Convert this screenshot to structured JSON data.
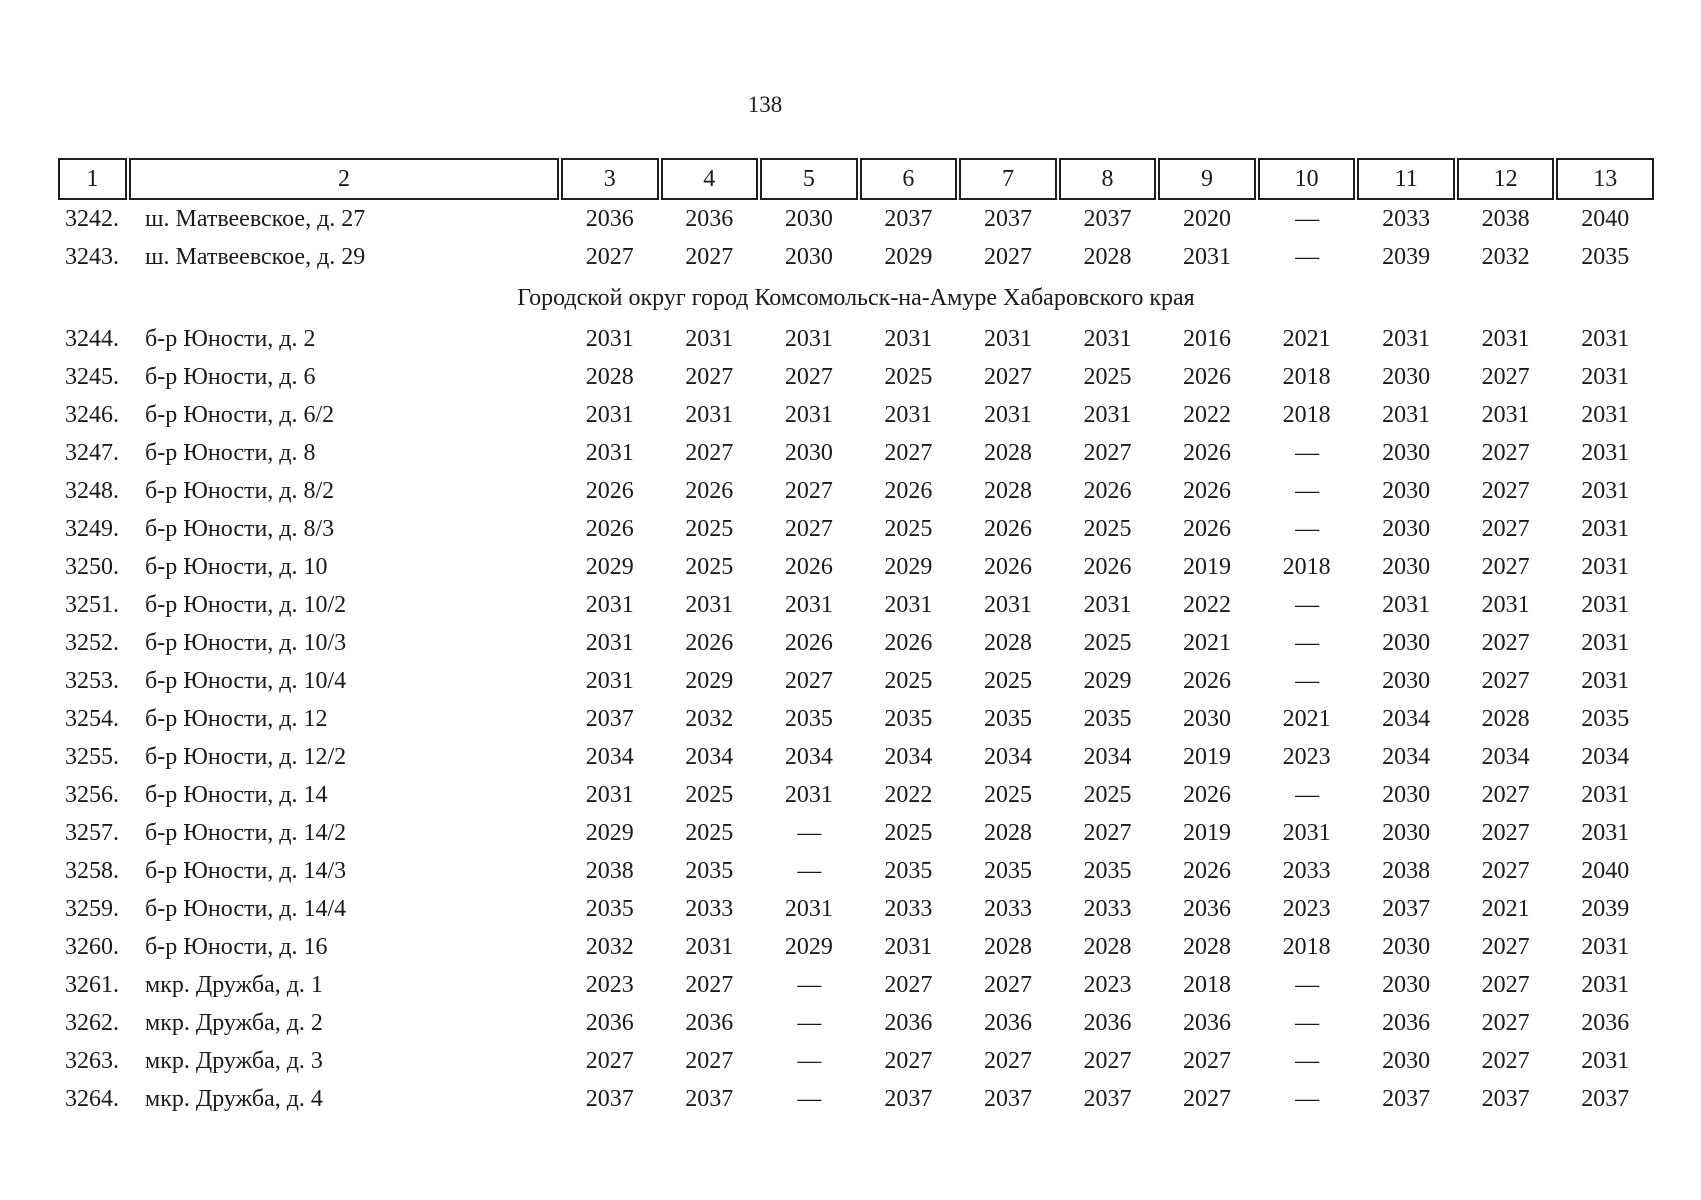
{
  "page": {
    "number": "138"
  },
  "colors": {
    "text": "#1b1b1b",
    "background": "#ffffff",
    "border": "#1f1f1f"
  },
  "table": {
    "header": [
      "1",
      "2",
      "3",
      "4",
      "5",
      "6",
      "7",
      "8",
      "9",
      "10",
      "11",
      "12",
      "13"
    ],
    "rows": [
      {
        "type": "data",
        "num": "3242.",
        "address": "ш. Матвеевское, д. 27",
        "values": [
          "2036",
          "2036",
          "2030",
          "2037",
          "2037",
          "2037",
          "2020",
          "—",
          "2033",
          "2038",
          "2040"
        ]
      },
      {
        "type": "data",
        "num": "3243.",
        "address": "ш. Матвеевское, д. 29",
        "values": [
          "2027",
          "2027",
          "2030",
          "2029",
          "2027",
          "2028",
          "2031",
          "—",
          "2039",
          "2032",
          "2035"
        ]
      },
      {
        "type": "section",
        "label": "Городской округ город Комсомольск-на-Амуре Хабаровского края"
      },
      {
        "type": "data",
        "num": "3244.",
        "address": "б-р Юности, д. 2",
        "values": [
          "2031",
          "2031",
          "2031",
          "2031",
          "2031",
          "2031",
          "2016",
          "2021",
          "2031",
          "2031",
          "2031"
        ]
      },
      {
        "type": "data",
        "num": "3245.",
        "address": "б-р Юности, д. 6",
        "values": [
          "2028",
          "2027",
          "2027",
          "2025",
          "2027",
          "2025",
          "2026",
          "2018",
          "2030",
          "2027",
          "2031"
        ]
      },
      {
        "type": "data",
        "num": "3246.",
        "address": "б-р Юности, д. 6/2",
        "values": [
          "2031",
          "2031",
          "2031",
          "2031",
          "2031",
          "2031",
          "2022",
          "2018",
          "2031",
          "2031",
          "2031"
        ]
      },
      {
        "type": "data",
        "num": "3247.",
        "address": "б-р Юности, д. 8",
        "values": [
          "2031",
          "2027",
          "2030",
          "2027",
          "2028",
          "2027",
          "2026",
          "—",
          "2030",
          "2027",
          "2031"
        ]
      },
      {
        "type": "data",
        "num": "3248.",
        "address": "б-р Юности, д. 8/2",
        "values": [
          "2026",
          "2026",
          "2027",
          "2026",
          "2028",
          "2026",
          "2026",
          "—",
          "2030",
          "2027",
          "2031"
        ]
      },
      {
        "type": "data",
        "num": "3249.",
        "address": "б-р Юности, д. 8/3",
        "values": [
          "2026",
          "2025",
          "2027",
          "2025",
          "2026",
          "2025",
          "2026",
          "—",
          "2030",
          "2027",
          "2031"
        ]
      },
      {
        "type": "data",
        "num": "3250.",
        "address": "б-р Юности, д. 10",
        "values": [
          "2029",
          "2025",
          "2026",
          "2029",
          "2026",
          "2026",
          "2019",
          "2018",
          "2030",
          "2027",
          "2031"
        ]
      },
      {
        "type": "data",
        "num": "3251.",
        "address": "б-р Юности, д. 10/2",
        "values": [
          "2031",
          "2031",
          "2031",
          "2031",
          "2031",
          "2031",
          "2022",
          "—",
          "2031",
          "2031",
          "2031"
        ]
      },
      {
        "type": "data",
        "num": "3252.",
        "address": "б-р Юности, д. 10/3",
        "values": [
          "2031",
          "2026",
          "2026",
          "2026",
          "2028",
          "2025",
          "2021",
          "—",
          "2030",
          "2027",
          "2031"
        ]
      },
      {
        "type": "data",
        "num": "3253.",
        "address": "б-р Юности, д. 10/4",
        "values": [
          "2031",
          "2029",
          "2027",
          "2025",
          "2025",
          "2029",
          "2026",
          "—",
          "2030",
          "2027",
          "2031"
        ]
      },
      {
        "type": "data",
        "num": "3254.",
        "address": "б-р Юности, д. 12",
        "values": [
          "2037",
          "2032",
          "2035",
          "2035",
          "2035",
          "2035",
          "2030",
          "2021",
          "2034",
          "2028",
          "2035"
        ]
      },
      {
        "type": "data",
        "num": "3255.",
        "address": "б-р Юности, д. 12/2",
        "values": [
          "2034",
          "2034",
          "2034",
          "2034",
          "2034",
          "2034",
          "2019",
          "2023",
          "2034",
          "2034",
          "2034"
        ]
      },
      {
        "type": "data",
        "num": "3256.",
        "address": "б-р Юности, д. 14",
        "values": [
          "2031",
          "2025",
          "2031",
          "2022",
          "2025",
          "2025",
          "2026",
          "—",
          "2030",
          "2027",
          "2031"
        ]
      },
      {
        "type": "data",
        "num": "3257.",
        "address": "б-р Юности, д. 14/2",
        "values": [
          "2029",
          "2025",
          "—",
          "2025",
          "2028",
          "2027",
          "2019",
          "2031",
          "2030",
          "2027",
          "2031"
        ]
      },
      {
        "type": "data",
        "num": "3258.",
        "address": "б-р Юности, д. 14/3",
        "values": [
          "2038",
          "2035",
          "—",
          "2035",
          "2035",
          "2035",
          "2026",
          "2033",
          "2038",
          "2027",
          "2040"
        ]
      },
      {
        "type": "data",
        "num": "3259.",
        "address": "б-р Юности, д. 14/4",
        "values": [
          "2035",
          "2033",
          "2031",
          "2033",
          "2033",
          "2033",
          "2036",
          "2023",
          "2037",
          "2021",
          "2039"
        ]
      },
      {
        "type": "data",
        "num": "3260.",
        "address": "б-р Юности, д. 16",
        "values": [
          "2032",
          "2031",
          "2029",
          "2031",
          "2028",
          "2028",
          "2028",
          "2018",
          "2030",
          "2027",
          "2031"
        ]
      },
      {
        "type": "data",
        "num": "3261.",
        "address": "мкр. Дружба, д. 1",
        "values": [
          "2023",
          "2027",
          "—",
          "2027",
          "2027",
          "2023",
          "2018",
          "—",
          "2030",
          "2027",
          "2031"
        ]
      },
      {
        "type": "data",
        "num": "3262.",
        "address": "мкр. Дружба, д. 2",
        "values": [
          "2036",
          "2036",
          "—",
          "2036",
          "2036",
          "2036",
          "2036",
          "—",
          "2036",
          "2027",
          "2036"
        ]
      },
      {
        "type": "data",
        "num": "3263.",
        "address": "мкр. Дружба, д. 3",
        "values": [
          "2027",
          "2027",
          "—",
          "2027",
          "2027",
          "2027",
          "2027",
          "—",
          "2030",
          "2027",
          "2031"
        ]
      },
      {
        "type": "data",
        "num": "3264.",
        "address": "мкр. Дружба, д. 4",
        "values": [
          "2037",
          "2037",
          "—",
          "2037",
          "2037",
          "2037",
          "2027",
          "—",
          "2037",
          "2037",
          "2037"
        ]
      }
    ]
  }
}
